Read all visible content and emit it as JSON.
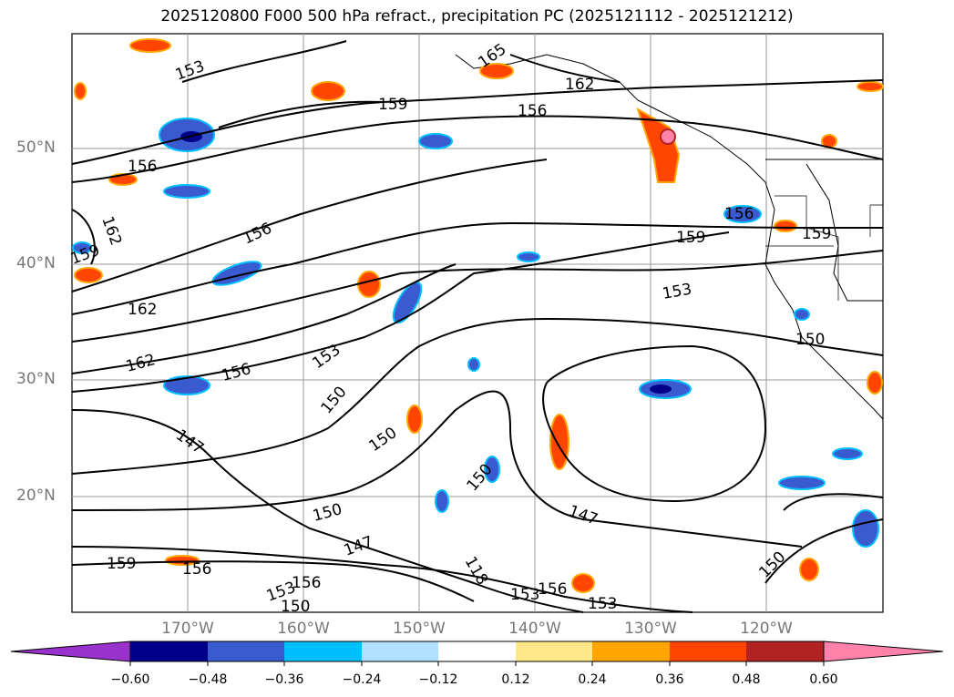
{
  "title": "2025120800 F000 500 hPa refract., precipitation PC (2025121112 - 2025121212)",
  "lat_labels": [
    "50°N",
    "40°N",
    "30°N",
    "20°N"
  ],
  "lon_labels": [
    "170°W",
    "160°W",
    "150°W",
    "140°W",
    "130°W",
    "120°W"
  ],
  "contour_labels": [
    "153",
    "165",
    "162",
    "159",
    "156",
    "156",
    "156",
    "162",
    "159",
    "156",
    "159",
    "159",
    "162",
    "153",
    "150",
    "162",
    "156",
    "153",
    "150",
    "147",
    "150",
    "150",
    "147",
    "147",
    "150",
    "159",
    "156",
    "156",
    "153",
    "150",
    "153",
    "156",
    "118",
    "153",
    "150"
  ],
  "colorbar": {
    "ticks": [
      "−0.60",
      "−0.48",
      "−0.36",
      "−0.24",
      "−0.12",
      "0.12",
      "0.24",
      "0.36",
      "0.48",
      "0.60"
    ],
    "colors": [
      "#9932cc",
      "#00008b",
      "#3a5bd0",
      "#00bfff",
      "#b0e0ff",
      "#ffffff",
      "#ffe88a",
      "#ffa500",
      "#ff4500",
      "#b22222",
      "#ff82ab"
    ]
  }
}
